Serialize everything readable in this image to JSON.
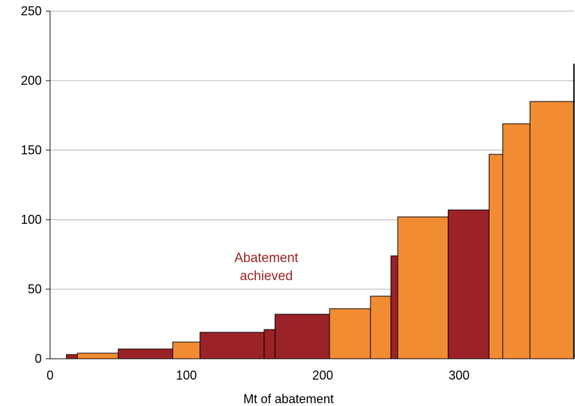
{
  "chart_data": {
    "type": "bar",
    "title": "",
    "xlabel": "Mt of abatement",
    "ylabel": "",
    "xlim": [
      0,
      384
    ],
    "ylim": [
      0,
      250
    ],
    "x_ticks": [
      "0",
      "100",
      "200",
      "300"
    ],
    "y_ticks": [
      "0",
      "50",
      "100",
      "150",
      "200",
      "250"
    ],
    "grid": "horizontal",
    "colors": {
      "achieved": "#9B2226",
      "other": "#F28C33",
      "annotation": "#9B2226"
    },
    "annotation": {
      "line1": "Abatement",
      "line2": "achieved"
    },
    "bars": [
      {
        "x_start": 12,
        "x_end": 20,
        "value": 3,
        "group": "achieved"
      },
      {
        "x_start": 20,
        "x_end": 50,
        "value": 4,
        "group": "other"
      },
      {
        "x_start": 50,
        "x_end": 90,
        "value": 7,
        "group": "achieved"
      },
      {
        "x_start": 90,
        "x_end": 110,
        "value": 12,
        "group": "other"
      },
      {
        "x_start": 110,
        "x_end": 157,
        "value": 19,
        "group": "achieved"
      },
      {
        "x_start": 157,
        "x_end": 165,
        "value": 21,
        "group": "achieved"
      },
      {
        "x_start": 165,
        "x_end": 205,
        "value": 32,
        "group": "achieved"
      },
      {
        "x_start": 205,
        "x_end": 235,
        "value": 36,
        "group": "other"
      },
      {
        "x_start": 235,
        "x_end": 250,
        "value": 45,
        "group": "other"
      },
      {
        "x_start": 250,
        "x_end": 255,
        "value": 74,
        "group": "achieved"
      },
      {
        "x_start": 255,
        "x_end": 292,
        "value": 102,
        "group": "other"
      },
      {
        "x_start": 292,
        "x_end": 322,
        "value": 107,
        "group": "achieved"
      },
      {
        "x_start": 322,
        "x_end": 332,
        "value": 147,
        "group": "other"
      },
      {
        "x_start": 332,
        "x_end": 352,
        "value": 169,
        "group": "other"
      },
      {
        "x_start": 352,
        "x_end": 384,
        "value": 185,
        "group": "other"
      },
      {
        "x_start": 384,
        "x_end": 385,
        "value": 212,
        "group": "other"
      }
    ]
  }
}
